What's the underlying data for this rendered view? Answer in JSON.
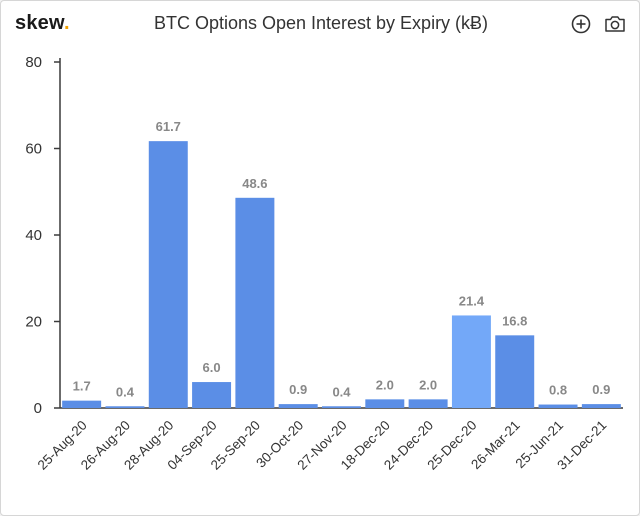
{
  "header": {
    "logo_text": "skew",
    "logo_dot": ".",
    "title": "BTC Options Open Interest by Expiry (kɃ)",
    "buttons": [
      {
        "name": "add-icon"
      },
      {
        "name": "camera-icon"
      }
    ]
  },
  "colors": {
    "bar": "#5b8ee6",
    "bar_highlight": "#73a8f8",
    "axis": "#3a3a3a",
    "label": "#888888",
    "logo_dot": "#f0a000"
  },
  "chart_data": {
    "type": "bar",
    "title": "BTC Options Open Interest by Expiry (kɃ)",
    "xlabel": "",
    "ylabel": "",
    "ylim": [
      0,
      80
    ],
    "yticks": [
      0,
      20,
      40,
      60,
      80
    ],
    "grid": false,
    "categories": [
      "25-Aug-20",
      "26-Aug-20",
      "28-Aug-20",
      "04-Sep-20",
      "25-Sep-20",
      "30-Oct-20",
      "27-Nov-20",
      "18-Dec-20",
      "24-Dec-20",
      "25-Dec-20",
      "26-Mar-21",
      "25-Jun-21",
      "31-Dec-21"
    ],
    "values": [
      1.7,
      0.4,
      61.7,
      6.0,
      48.6,
      0.9,
      0.4,
      2.0,
      2.0,
      21.4,
      16.8,
      0.8,
      0.9
    ],
    "value_labels": [
      "1.7",
      "0.4",
      "61.7",
      "6.0",
      "48.6",
      "0.9",
      "0.4",
      "2.0",
      "2.0",
      "21.4",
      "16.8",
      "0.8",
      "0.9"
    ],
    "highlight_index": 9
  }
}
